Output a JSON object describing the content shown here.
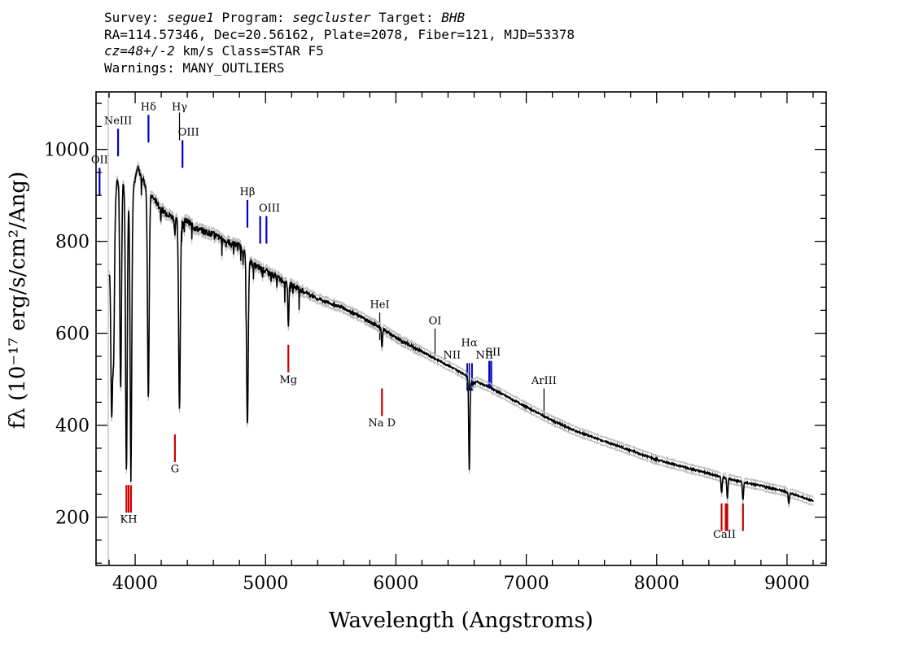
{
  "header": {
    "survey_label": "Survey:",
    "survey": "segue1",
    "program_label": "Program:",
    "program": "segcluster",
    "target_label": "Target:",
    "target": "BHB",
    "line2": "RA=114.57346, Dec=20.56162, Plate=2078, Fiber=121, MJD=53378",
    "cz": "cz=48+/-2",
    "cz_rest": " km/s Class=STAR F5",
    "warnings": "Warnings: MANY_OUTLIERS"
  },
  "chart_data": {
    "type": "line",
    "xlabel": "Wavelength (Angstroms)",
    "ylabel": "fλ (10⁻¹⁷ erg/s/cm²/Ang)",
    "xlim": [
      3700,
      9300
    ],
    "ylim": [
      95,
      1125
    ],
    "x_ticks": [
      4000,
      5000,
      6000,
      7000,
      8000,
      9000
    ],
    "y_ticks": [
      200,
      400,
      600,
      800,
      1000
    ],
    "x_minor_step": 200,
    "y_minor_step": 50,
    "grid": false,
    "series": [
      {
        "color": "#000000",
        "x": [
          3800,
          3830,
          3860,
          3890,
          3920,
          3950,
          3980,
          4000,
          4020,
          4040,
          4060,
          4080,
          4120,
          4150,
          4200,
          4250,
          4300,
          4320,
          4370,
          4400,
          4450,
          4500,
          4600,
          4700,
          4800,
          4830,
          4900,
          5000,
          5100,
          5200,
          5300,
          5400,
          5500,
          5600,
          5700,
          5800,
          5900,
          6000,
          6100,
          6200,
          6300,
          6400,
          6500,
          6530,
          6590,
          6620,
          6700,
          6800,
          7000,
          7200,
          7400,
          7600,
          7800,
          8000,
          8200,
          8400,
          8600,
          8800,
          9000,
          9200
        ],
        "y": [
          730,
          840,
          930,
          940,
          920,
          895,
          915,
          935,
          960,
          945,
          935,
          920,
          900,
          890,
          870,
          860,
          850,
          848,
          842,
          845,
          830,
          825,
          815,
          800,
          790,
          780,
          750,
          735,
          720,
          705,
          690,
          675,
          665,
          655,
          640,
          625,
          610,
          590,
          575,
          560,
          545,
          530,
          515,
          510,
          490,
          495,
          485,
          470,
          440,
          410,
          385,
          365,
          345,
          325,
          310,
          295,
          280,
          268,
          255,
          235
        ]
      }
    ],
    "absorption_lines": [
      {
        "x": 3820,
        "depth": 370
      },
      {
        "x": 3835,
        "depth": 300
      },
      {
        "x": 3889,
        "depth": 460
      },
      {
        "x": 3933,
        "depth": 610
      },
      {
        "x": 3968,
        "depth": 600
      },
      {
        "x": 4101,
        "depth": 450
      },
      {
        "x": 4305,
        "depth": 30
      },
      {
        "x": 4340,
        "depth": 410
      },
      {
        "x": 4861,
        "depth": 370
      },
      {
        "x": 5175,
        "depth": 90
      },
      {
        "x": 5893,
        "depth": 40
      },
      {
        "x": 6563,
        "depth": 200
      },
      {
        "x": 8498,
        "depth": 35
      },
      {
        "x": 8542,
        "depth": 45
      },
      {
        "x": 8662,
        "depth": 40
      },
      {
        "x": 9014,
        "depth": 25
      }
    ],
    "emission_markers": [
      {
        "label": "OII",
        "x": 3727,
        "y0": 900,
        "y1": 960,
        "color": "#0000cc",
        "lx": 3727,
        "ly": 970
      },
      {
        "label": "NeIII",
        "x": 3869,
        "y0": 985,
        "y1": 1045,
        "color": "#0000cc",
        "lx": 3869,
        "ly": 1055
      },
      {
        "label": "Hδ",
        "x": 4102,
        "y0": 1015,
        "y1": 1075,
        "color": "#0000cc",
        "lx": 4102,
        "ly": 1085
      },
      {
        "label": "Hγ",
        "x": 4340,
        "y0": 1020,
        "y1": 1080,
        "color": "#000000",
        "lx": 4340,
        "ly": 1085
      },
      {
        "label": "OIII",
        "x": 4363,
        "y0": 960,
        "y1": 1020,
        "color": "#0000cc",
        "lx": 4410,
        "ly": 1030
      },
      {
        "label": "Hβ",
        "x": 4861,
        "y0": 830,
        "y1": 890,
        "color": "#0000cc",
        "lx": 4861,
        "ly": 900
      },
      {
        "label": "OIII",
        "x": 4959,
        "y0": 795,
        "y1": 855,
        "color": "#0000cc",
        "lx": 5030,
        "ly": 865
      },
      {
        "label": "OIII",
        "x": 5007,
        "y0": 795,
        "y1": 855,
        "color": "#0000cc",
        "lx": 0,
        "ly": 0
      },
      {
        "label": "HeI",
        "x": 5876,
        "y0": 585,
        "y1": 645,
        "color": "#000000",
        "lx": 5876,
        "ly": 655
      },
      {
        "label": "OI",
        "x": 6300,
        "y0": 550,
        "y1": 610,
        "color": "#000000",
        "lx": 6300,
        "ly": 620
      },
      {
        "label": "NII",
        "x": 6548,
        "y0": 475,
        "y1": 535,
        "color": "#0000cc",
        "lx": 6430,
        "ly": 545
      },
      {
        "label": "Hα",
        "x": 6563,
        "y0": 475,
        "y1": 535,
        "color": "#000000",
        "lx": 6563,
        "ly": 572
      },
      {
        "label": "NII",
        "x": 6583,
        "y0": 475,
        "y1": 535,
        "color": "#0000cc",
        "lx": 0,
        "ly": 0
      },
      {
        "label": "NII",
        "x": 6716,
        "y0": 480,
        "y1": 540,
        "color": "#0000cc",
        "lx": 6680,
        "ly": 545
      },
      {
        "label": "SII",
        "x": 6731,
        "y0": 480,
        "y1": 540,
        "color": "#0000cc",
        "lx": 6745,
        "ly": 552
      },
      {
        "label": "ArIII",
        "x": 7136,
        "y0": 420,
        "y1": 480,
        "color": "#000000",
        "lx": 7136,
        "ly": 490
      },
      {
        "label": "Mg",
        "x": 5175,
        "y0": 515,
        "y1": 575,
        "color": "#cc0000",
        "lx": 5175,
        "ly": 491,
        "below": true
      },
      {
        "label": "Na  D",
        "x": 5893,
        "y0": 420,
        "y1": 480,
        "color": "#cc0000",
        "lx": 5893,
        "ly": 398,
        "below": true
      },
      {
        "label": "G",
        "x": 4305,
        "y0": 320,
        "y1": 380,
        "color": "#cc0000",
        "lx": 4305,
        "ly": 298,
        "below": true
      },
      {
        "label": "KH",
        "x": 3950,
        "y0": 210,
        "y1": 270,
        "color": "#cc0000",
        "lx": 3950,
        "ly": 188,
        "below": true
      },
      {
        "label": "",
        "x": 3933,
        "y0": 210,
        "y1": 270,
        "color": "#cc0000",
        "lx": 0,
        "ly": 0
      },
      {
        "label": "",
        "x": 3968,
        "y0": 210,
        "y1": 270,
        "color": "#cc0000",
        "lx": 0,
        "ly": 0
      },
      {
        "label": "CaII",
        "x": 8530,
        "y0": 170,
        "y1": 230,
        "color": "#cc0000",
        "lx": 8520,
        "ly": 155,
        "below": true
      },
      {
        "label": "",
        "x": 8498,
        "y0": 170,
        "y1": 230,
        "color": "#cc0000",
        "lx": 0,
        "ly": 0
      },
      {
        "label": "",
        "x": 8542,
        "y0": 170,
        "y1": 230,
        "color": "#cc0000",
        "lx": 0,
        "ly": 0
      },
      {
        "label": "",
        "x": 8662,
        "y0": 170,
        "y1": 230,
        "color": "#cc0000",
        "lx": 0,
        "ly": 0
      }
    ]
  }
}
